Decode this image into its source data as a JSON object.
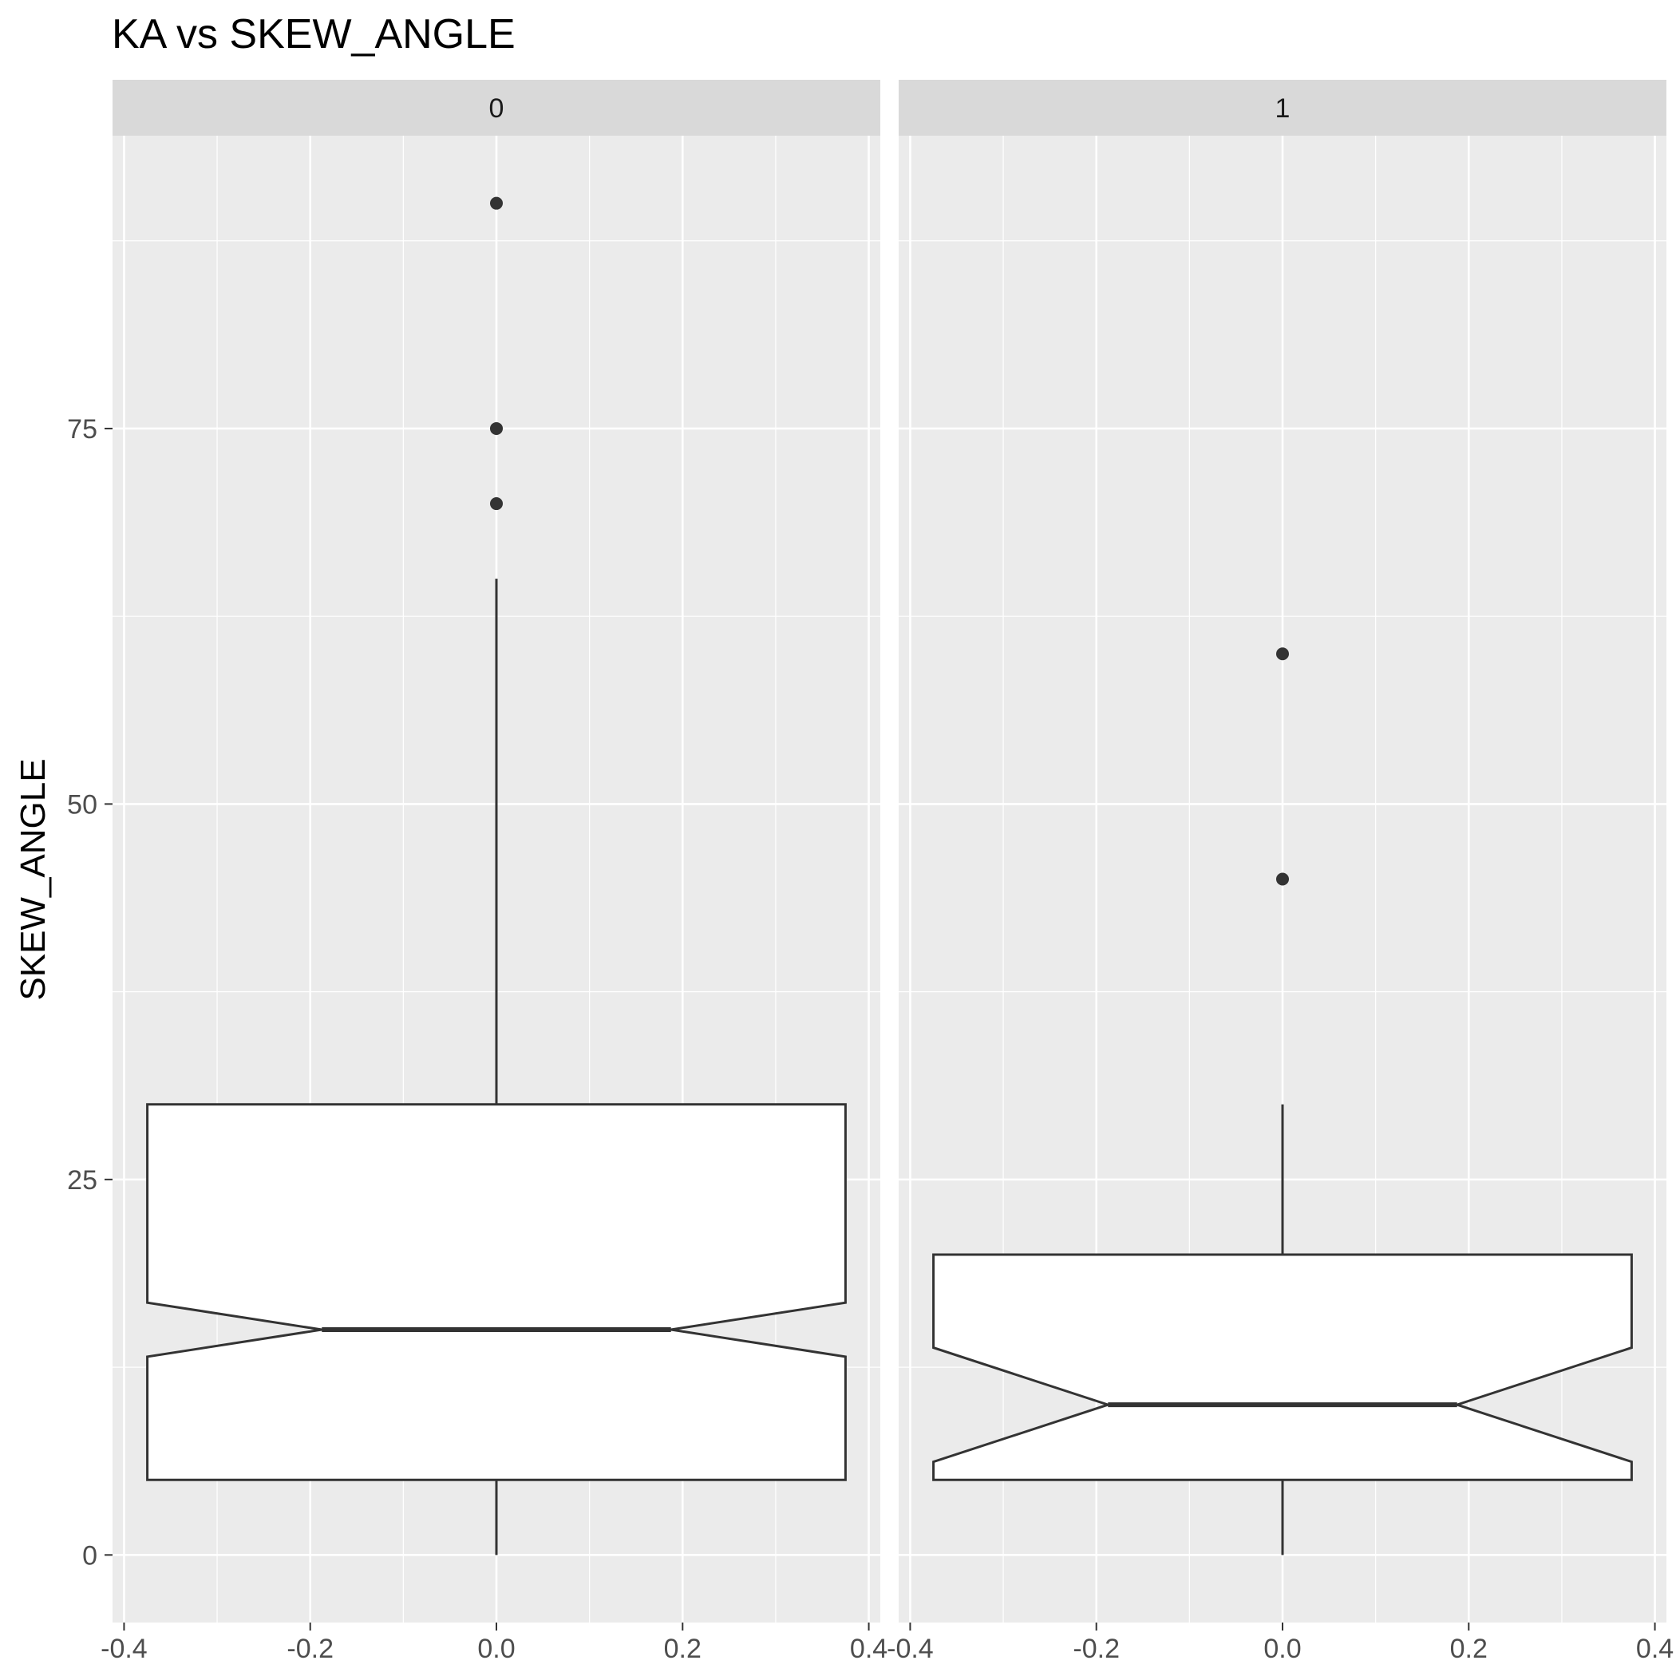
{
  "chart_data": {
    "type": "boxplot",
    "title": "KA vs SKEW_ANGLE",
    "xlabel": "",
    "ylabel": "SKEW_ANGLE",
    "xlim": [
      -0.4,
      0.4
    ],
    "ylim": [
      -4.5,
      94.5
    ],
    "x_ticks": [
      -0.4,
      -0.2,
      0.0,
      0.2,
      0.4
    ],
    "x_tick_labels": [
      "-0.4",
      "-0.2",
      "0.0",
      "0.2",
      "0.4"
    ],
    "y_ticks": [
      0,
      25,
      50,
      75
    ],
    "y_tick_labels": [
      "0",
      "25",
      "50",
      "75"
    ],
    "grid": true,
    "notched": true,
    "facets": [
      {
        "label": "0",
        "box": {
          "x_center": 0,
          "width": 0.75,
          "q1": 5,
          "median": 15,
          "q3": 30,
          "notch_lower": 13.2,
          "notch_upper": 16.8,
          "whisker_low": 0,
          "whisker_high": 65,
          "outliers": [
            70,
            75,
            90
          ]
        }
      },
      {
        "label": "1",
        "box": {
          "x_center": 0,
          "width": 0.75,
          "q1": 5,
          "median": 10,
          "q3": 20,
          "notch_lower": 6.2,
          "notch_upper": 13.8,
          "whisker_low": 0,
          "whisker_high": 30,
          "outliers": [
            45,
            60
          ]
        }
      }
    ]
  },
  "colors": {
    "panel_background": "#ebebeb",
    "strip_background": "#d9d9d9",
    "grid_line": "#ffffff",
    "box_fill": "#ffffff",
    "box_stroke": "#333333",
    "outlier": "#333333",
    "tick_mark": "#333333"
  }
}
